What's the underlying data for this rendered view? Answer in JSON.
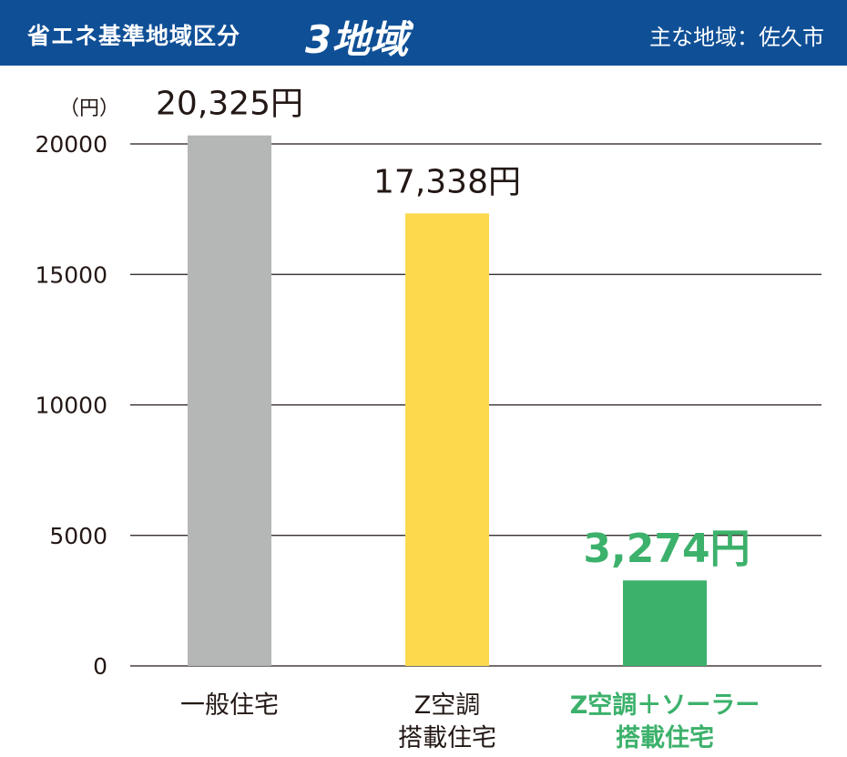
{
  "header": {
    "title": "省エネ基準地域区分",
    "zone": "3地域",
    "region": "主な地域：佐久市"
  },
  "colors": {
    "header_bg": "#0f4f96",
    "bar_general": "#b5b6b6",
    "bar_z": "#fdd94e",
    "bar_solar": "#3cb16b",
    "emphasis_text": "#3cb16b"
  },
  "chart_data": {
    "type": "bar",
    "unit_label": "（円）",
    "ylim": [
      0,
      20000
    ],
    "yticks": [
      "0",
      "5000",
      "10000",
      "15000",
      "20000"
    ],
    "grid": true,
    "categories": [
      [
        "一般住宅"
      ],
      [
        "Z空調",
        "搭載住宅"
      ],
      [
        "Z空調＋ソーラー",
        "搭載住宅"
      ]
    ],
    "values": [
      20325,
      17338,
      3274
    ],
    "value_labels": [
      "20,325円",
      "17,338円",
      "3,274円"
    ],
    "colors": [
      "#b5b6b6",
      "#fdd94e",
      "#3cb16b"
    ],
    "highlight_index": 2
  }
}
